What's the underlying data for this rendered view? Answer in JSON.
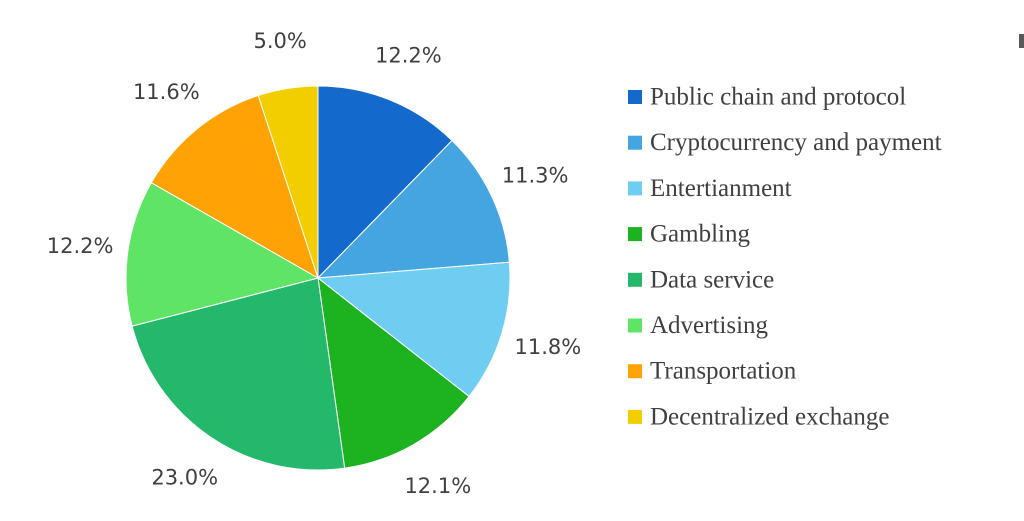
{
  "chart_data": {
    "type": "pie",
    "title": "",
    "slices": [
      {
        "label": "Public chain and protocol",
        "value": 12.2,
        "value_label": "12.2%",
        "color": "#1469CC"
      },
      {
        "label": "Cryptocurrency and payment",
        "value": 11.3,
        "value_label": "11.3%",
        "color": "#44A5E0"
      },
      {
        "label": "Entertianment",
        "value": 11.8,
        "value_label": "11.8%",
        "color": "#70CDF2"
      },
      {
        "label": "Gambling",
        "value": 12.1,
        "value_label": "12.1%",
        "color": "#1DB320"
      },
      {
        "label": "Data service",
        "value": 23.0,
        "value_label": "23.0%",
        "color": "#24B86B"
      },
      {
        "label": "Advertising",
        "value": 12.2,
        "value_label": "12.2%",
        "color": "#60E466"
      },
      {
        "label": "Transportation",
        "value": 11.6,
        "value_label": "11.6%",
        "color": "#FFA305"
      },
      {
        "label": "Decentralized exchange",
        "value": 5.0,
        "value_label": "5.0%",
        "color": "#F2CE00"
      }
    ],
    "start_angle": "12 o'clock",
    "direction": "clockwise",
    "legend_position": "right"
  }
}
